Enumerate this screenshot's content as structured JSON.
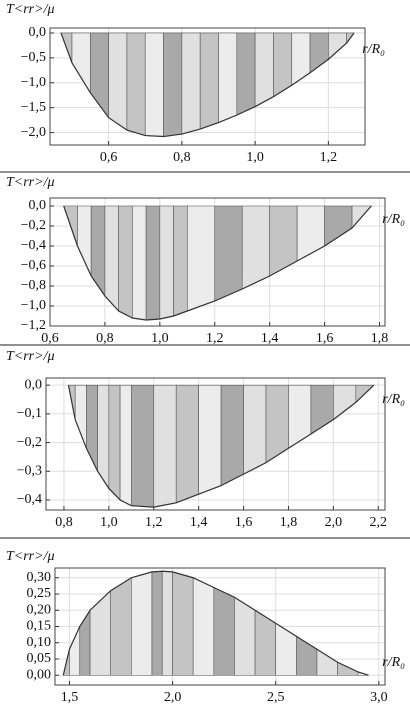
{
  "chart_data": [
    {
      "type": "area",
      "ylabel": "T<rr>/μ",
      "xlabel": "r/R₀",
      "grid": true,
      "color": "#333333",
      "colors": [
        "#c4c4c4",
        "#ececec",
        "#a9a9a9",
        "#e0e0e0"
      ],
      "x": [
        0.47,
        0.5,
        0.55,
        0.6,
        0.65,
        0.7,
        0.75,
        0.8,
        0.85,
        0.9,
        0.95,
        1.0,
        1.05,
        1.1,
        1.15,
        1.2,
        1.25,
        1.27
      ],
      "values": [
        0,
        -0.6,
        -1.2,
        -1.7,
        -1.95,
        -2.06,
        -2.08,
        -2.03,
        -1.93,
        -1.8,
        -1.65,
        -1.48,
        -1.28,
        -1.05,
        -0.8,
        -0.53,
        -0.2,
        0
      ],
      "xlim": [
        0.44,
        1.3
      ],
      "ylim": [
        -2.25,
        0.1
      ],
      "xticks": [
        {
          "value": 0.6,
          "label": "0,6"
        },
        {
          "value": 0.8,
          "label": "0,8"
        },
        {
          "value": 1.0,
          "label": "1,0"
        },
        {
          "value": 1.2,
          "label": "1,2"
        }
      ],
      "yticks": [
        {
          "value": 0,
          "label": "0,0"
        },
        {
          "value": -0.5,
          "label": "−0,5"
        },
        {
          "value": -1.0,
          "label": "−1,0"
        },
        {
          "value": -1.5,
          "label": "−1,5"
        },
        {
          "value": -2.0,
          "label": "−2,0"
        }
      ]
    },
    {
      "type": "area",
      "ylabel": "T<rr>/μ",
      "xlabel": "r/R₀",
      "grid": true,
      "color": "#333333",
      "colors": [
        "#c4c4c4",
        "#ececec",
        "#a9a9a9",
        "#e0e0e0"
      ],
      "x": [
        0.65,
        0.7,
        0.75,
        0.8,
        0.85,
        0.9,
        0.95,
        1.0,
        1.05,
        1.1,
        1.2,
        1.3,
        1.4,
        1.5,
        1.6,
        1.7,
        1.77
      ],
      "values": [
        0,
        -0.4,
        -0.7,
        -0.9,
        -1.05,
        -1.12,
        -1.14,
        -1.13,
        -1.1,
        -1.05,
        -0.95,
        -0.83,
        -0.7,
        -0.55,
        -0.4,
        -0.22,
        0
      ],
      "xlim": [
        0.6,
        1.82
      ],
      "ylim": [
        -1.2,
        0.08
      ],
      "xticks": [
        {
          "value": 0.6,
          "label": "0,6"
        },
        {
          "value": 0.8,
          "label": "0,8"
        },
        {
          "value": 1.0,
          "label": "1,0"
        },
        {
          "value": 1.2,
          "label": "1,2"
        },
        {
          "value": 1.4,
          "label": "1,4"
        },
        {
          "value": 1.6,
          "label": "1,6"
        },
        {
          "value": 1.8,
          "label": "1,8"
        }
      ],
      "yticks": [
        {
          "value": 0,
          "label": "0,0"
        },
        {
          "value": -0.2,
          "label": "−0,2"
        },
        {
          "value": -0.4,
          "label": "−0,4"
        },
        {
          "value": -0.6,
          "label": "−0,6"
        },
        {
          "value": -0.8,
          "label": "−0,8"
        },
        {
          "value": -1.0,
          "label": "−1,0"
        },
        {
          "value": -1.2,
          "label": "−1,2"
        }
      ]
    },
    {
      "type": "area",
      "ylabel": "T<rr>/μ",
      "xlabel": "r/R₀",
      "grid": true,
      "color": "#333333",
      "colors": [
        "#c4c4c4",
        "#ececec",
        "#a9a9a9",
        "#e0e0e0"
      ],
      "x": [
        0.82,
        0.85,
        0.9,
        0.95,
        1.0,
        1.05,
        1.1,
        1.2,
        1.3,
        1.4,
        1.5,
        1.6,
        1.7,
        1.8,
        1.9,
        2.0,
        2.1,
        2.18
      ],
      "values": [
        0,
        -0.12,
        -0.22,
        -0.3,
        -0.36,
        -0.4,
        -0.42,
        -0.425,
        -0.41,
        -0.38,
        -0.35,
        -0.31,
        -0.27,
        -0.22,
        -0.17,
        -0.12,
        -0.06,
        0
      ],
      "xlim": [
        0.72,
        2.23
      ],
      "ylim": [
        -0.435,
        0.025
      ],
      "xticks": [
        {
          "value": 0.8,
          "label": "0,8"
        },
        {
          "value": 1.0,
          "label": "1,0"
        },
        {
          "value": 1.2,
          "label": "1,2"
        },
        {
          "value": 1.4,
          "label": "1,4"
        },
        {
          "value": 1.6,
          "label": "1,6"
        },
        {
          "value": 1.8,
          "label": "1,8"
        },
        {
          "value": 2.0,
          "label": "2,0"
        },
        {
          "value": 2.2,
          "label": "2,2"
        }
      ],
      "yticks": [
        {
          "value": 0,
          "label": "0,0"
        },
        {
          "value": -0.1,
          "label": "−0,1"
        },
        {
          "value": -0.2,
          "label": "−0,2"
        },
        {
          "value": -0.3,
          "label": "−0,3"
        },
        {
          "value": -0.4,
          "label": "−0,4"
        }
      ]
    },
    {
      "type": "area",
      "ylabel": "T<rr>/μ",
      "xlabel": "r/R₀",
      "grid": true,
      "color": "#333333",
      "colors": [
        "#c4c4c4",
        "#ececec",
        "#a9a9a9",
        "#e0e0e0"
      ],
      "x": [
        1.47,
        1.5,
        1.55,
        1.6,
        1.7,
        1.8,
        1.9,
        1.95,
        2.0,
        2.1,
        2.2,
        2.3,
        2.4,
        2.5,
        2.6,
        2.7,
        2.8,
        2.9,
        2.95
      ],
      "values": [
        0,
        0.08,
        0.15,
        0.2,
        0.26,
        0.3,
        0.318,
        0.32,
        0.318,
        0.3,
        0.27,
        0.24,
        0.2,
        0.16,
        0.12,
        0.08,
        0.04,
        0.01,
        0
      ],
      "xlim": [
        1.43,
        3.03
      ],
      "ylim": [
        -0.03,
        0.33
      ],
      "xticks": [
        {
          "value": 1.5,
          "label": "1,5"
        },
        {
          "value": 2.0,
          "label": "2,0"
        },
        {
          "value": 2.5,
          "label": "2,5"
        },
        {
          "value": 3.0,
          "label": "3,0"
        }
      ],
      "yticks": [
        {
          "value": 0,
          "label": "0,00"
        },
        {
          "value": 0.05,
          "label": "0,05"
        },
        {
          "value": 0.1,
          "label": "0,10"
        },
        {
          "value": 0.15,
          "label": "0,15"
        },
        {
          "value": 0.2,
          "label": "0,20"
        },
        {
          "value": 0.25,
          "label": "0,25"
        },
        {
          "value": 0.3,
          "label": "0,30"
        }
      ]
    }
  ]
}
